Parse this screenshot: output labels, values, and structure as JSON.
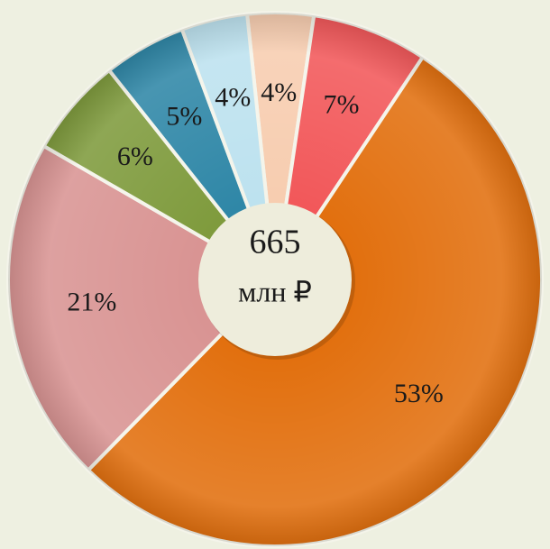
{
  "chart_data": {
    "type": "donut",
    "values": [
      4,
      7,
      53,
      21,
      6,
      5,
      4
    ],
    "value_labels": [
      "4%",
      "7%",
      "53%",
      "21%",
      "6%",
      "5%",
      "4%"
    ],
    "colors": [
      "#f7cdb0",
      "#f2585a",
      "#e2700f",
      "#d99493",
      "#7f9b3d",
      "#2f87a7",
      "#bde2ef"
    ],
    "total": 665,
    "total_unit": "млн ₽"
  }
}
